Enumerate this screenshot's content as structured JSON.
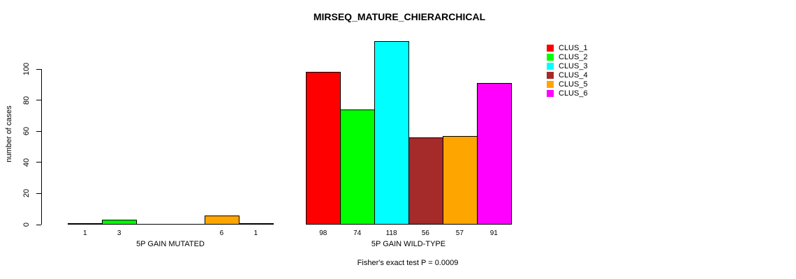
{
  "page": {
    "background": "#FFFFFF"
  },
  "chart_data": {
    "type": "bar",
    "title": "MIRSEQ_MATURE_CHIERARCHICAL",
    "ylabel": "number of cases",
    "xlabel": "",
    "ylim": [
      0,
      118
    ],
    "yticks": [
      0,
      20,
      40,
      60,
      80,
      100
    ],
    "grid": false,
    "legend_position": "right-outside",
    "categories": [
      "5P GAIN MUTATED",
      "5P GAIN WILD-TYPE"
    ],
    "series": [
      {
        "name": "CLUS_1",
        "color": "#FF0000",
        "values": [
          1,
          98
        ]
      },
      {
        "name": "CLUS_2",
        "color": "#00FF00",
        "values": [
          3,
          74
        ]
      },
      {
        "name": "CLUS_3",
        "color": "#00FFFF",
        "values": [
          0,
          118
        ]
      },
      {
        "name": "CLUS_4",
        "color": "#A52A2A",
        "values": [
          0,
          56
        ]
      },
      {
        "name": "CLUS_5",
        "color": "#FFA500",
        "values": [
          6,
          57
        ]
      },
      {
        "name": "CLUS_6",
        "color": "#FF00FF",
        "values": [
          1,
          91
        ]
      }
    ],
    "bar_value_labels": true,
    "zero_value_labels_hidden": true,
    "annotation": "Fisher's exact test P = 0.0009",
    "axis_color": "#000000",
    "bar_border_color": "#000000"
  }
}
